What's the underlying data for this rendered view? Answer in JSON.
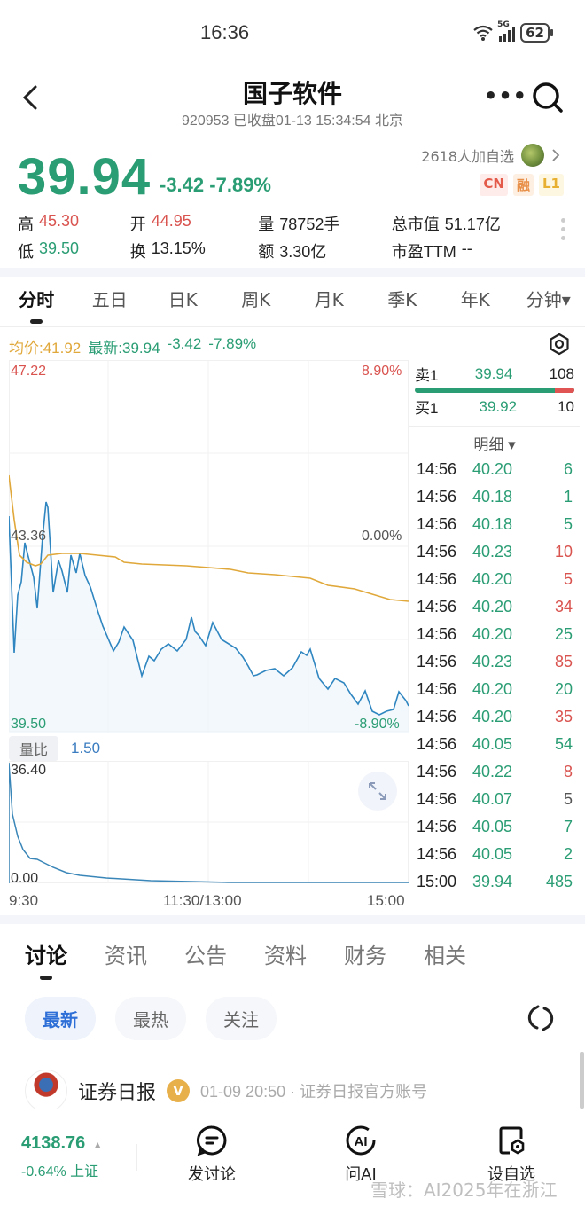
{
  "status_bar": {
    "time": "16:36",
    "network": "5G",
    "battery": "62"
  },
  "header": {
    "title": "国子软件",
    "subtitle": "920953 已收盘01-13 15:34:54 北京",
    "more_label": "•••"
  },
  "quote": {
    "price": "39.94",
    "change": "-3.42",
    "change_pct": "-7.89%",
    "watchlist_count": "2618人加自选",
    "badges": [
      "CN",
      "融",
      "L1"
    ],
    "stats": {
      "high_label": "高",
      "high": "45.30",
      "open_label": "开",
      "open": "44.95",
      "volume_label": "量",
      "volume": "78752手",
      "mktcap_label": "总市值",
      "mktcap": "51.17亿",
      "low_label": "低",
      "low": "39.50",
      "turnover_label": "换",
      "turnover": "13.15%",
      "amount_label": "额",
      "amount": "3.30亿",
      "pe_label": "市盈TTM",
      "pe": "--"
    }
  },
  "chart_tabs": [
    "分时",
    "五日",
    "日K",
    "周K",
    "月K",
    "季K",
    "年K",
    "分钟▾"
  ],
  "infoline": {
    "avg": "均价:41.92",
    "latest": "最新:39.94",
    "change": "-3.42",
    "pct": "-7.89%"
  },
  "chart_axis": {
    "top_price": "47.22",
    "top_pct": "8.90%",
    "mid_price": "43.36",
    "mid_pct": "0.00%",
    "bottom_price": "39.50",
    "bottom_pct": "-8.90%",
    "vol_label": "量比",
    "vol_value": "1.50",
    "vol_top": "36.40",
    "vol_bottom": "0.00",
    "time_start": "9:30",
    "time_mid": "11:30/13:00",
    "time_end": "15:00"
  },
  "order_book": {
    "sell1": {
      "label": "卖1",
      "price": "39.94",
      "qty": "108"
    },
    "buy1": {
      "label": "买1",
      "price": "39.92",
      "qty": "10"
    },
    "detail_label": "明细 ▾",
    "ticks": [
      {
        "time": "14:56",
        "price": "40.20",
        "vol": "6",
        "dir": "green"
      },
      {
        "time": "14:56",
        "price": "40.18",
        "vol": "1",
        "dir": "green"
      },
      {
        "time": "14:56",
        "price": "40.18",
        "vol": "5",
        "dir": "green"
      },
      {
        "time": "14:56",
        "price": "40.23",
        "vol": "10",
        "dir": "red"
      },
      {
        "time": "14:56",
        "price": "40.20",
        "vol": "5",
        "dir": "red"
      },
      {
        "time": "14:56",
        "price": "40.20",
        "vol": "34",
        "dir": "red"
      },
      {
        "time": "14:56",
        "price": "40.20",
        "vol": "25",
        "dir": "green"
      },
      {
        "time": "14:56",
        "price": "40.23",
        "vol": "85",
        "dir": "red"
      },
      {
        "time": "14:56",
        "price": "40.20",
        "vol": "20",
        "dir": "green"
      },
      {
        "time": "14:56",
        "price": "40.20",
        "vol": "35",
        "dir": "red"
      },
      {
        "time": "14:56",
        "price": "40.05",
        "vol": "54",
        "dir": "green"
      },
      {
        "time": "14:56",
        "price": "40.22",
        "vol": "8",
        "dir": "red"
      },
      {
        "time": "14:56",
        "price": "40.07",
        "vol": "5",
        "dir": "gray"
      },
      {
        "time": "14:56",
        "price": "40.05",
        "vol": "7",
        "dir": "green"
      },
      {
        "time": "14:56",
        "price": "40.05",
        "vol": "2",
        "dir": "green"
      },
      {
        "time": "15:00",
        "price": "39.94",
        "vol": "485",
        "dir": "green"
      }
    ]
  },
  "news_tabs": [
    "讨论",
    "资讯",
    "公告",
    "资料",
    "财务",
    "相关"
  ],
  "filter_chips": [
    "最新",
    "最热",
    "关注"
  ],
  "post": {
    "author": "证券日报",
    "verified": "V",
    "meta": "01-09 20:50 · 证券日报官方账号"
  },
  "bottom_bar": {
    "index_value": "4138.76",
    "index_sub": "-0.64% 上证",
    "nav": [
      "发讨论",
      "问AI",
      "设自选"
    ]
  },
  "watermark": "雪球：AI2025年在浙江",
  "colors": {
    "up": "#d9534f",
    "down": "#2a9d74",
    "avg_line": "#e0a83a",
    "price_line": "#2f86c0"
  },
  "chart_data": {
    "type": "line",
    "title": "分时",
    "x": [
      "9:30",
      "11:30/13:00",
      "15:00"
    ],
    "ylim": [
      39.5,
      47.22
    ],
    "prev_close": 43.36,
    "series": [
      {
        "name": "价格",
        "values": [
          44.2,
          40.1,
          41.5,
          42.3,
          41.0,
          44.6,
          42.6,
          43.0,
          41.9,
          42.5,
          41.4,
          41.0,
          41.6,
          41.2,
          40.8,
          40.8,
          41.1,
          41.4,
          41.9,
          41.6,
          41.2,
          41.5,
          41.3,
          40.8,
          40.6,
          40.9,
          40.7,
          41.1,
          40.9,
          40.1,
          40.3,
          40.0,
          39.8,
          39.9,
          39.6,
          40.0,
          39.9
        ]
      },
      {
        "name": "均价",
        "values": [
          44.9,
          43.0,
          42.7,
          42.8,
          42.8,
          42.6,
          42.4,
          42.35,
          42.3,
          42.25,
          42.1,
          42.05,
          41.9
        ]
      },
      {
        "name": "量比",
        "values": [
          36.4,
          20.0,
          12.0,
          8.0,
          5.0,
          3.5,
          2.5,
          2.0,
          1.8,
          1.6,
          1.5
        ]
      }
    ]
  }
}
